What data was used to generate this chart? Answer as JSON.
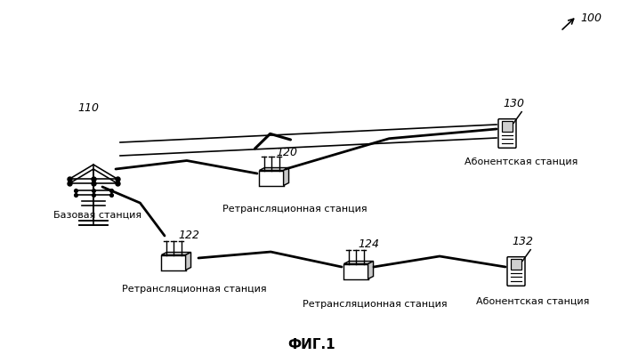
{
  "title": "ФИГ.1",
  "label_100": "100",
  "label_110": "110",
  "label_120": "120",
  "label_122": "122",
  "label_124": "124",
  "label_130": "130",
  "label_132": "132",
  "text_base": "Базовая станция",
  "text_relay1": "Ретрансляционная станция",
  "text_relay2": "Ретрансляционная станция",
  "text_relay3": "Ретрансляционная станция",
  "text_sub1": "Абонентская станция",
  "text_sub2": "Абонентская станция",
  "bg_color": "#ffffff",
  "line_color": "#000000",
  "font_size_label": 9,
  "font_size_title": 11,
  "font_size_station": 8
}
